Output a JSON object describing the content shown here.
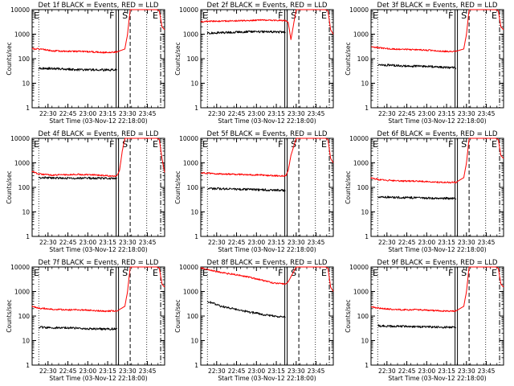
{
  "figure": {
    "xlabel": "Start Time (03-Nov-12 22:18:00)",
    "ylabel": "Counts/sec",
    "x_tick_labels": [
      "22:30",
      "22:45",
      "23:00",
      "23:15",
      "23:30",
      "23:45"
    ],
    "y_tick_labels": [
      "1",
      "10",
      "100",
      "1000",
      "10000"
    ],
    "x_ticks_min": [
      12,
      27,
      42,
      57,
      72,
      87
    ],
    "y_ticks": [
      1,
      10,
      100,
      1000,
      10000
    ],
    "xlim_min": [
      0,
      100
    ],
    "ylim": [
      1,
      10000
    ],
    "y_scale": "log",
    "colors": {
      "events": "#000000",
      "lld": "#ff0000",
      "frame": "#000000",
      "background": "#ffffff"
    },
    "markers": [
      {
        "label": "F",
        "x_min": 64.3,
        "style": "solid-double"
      },
      {
        "label": "S",
        "x_min": 74,
        "style": "dashed"
      },
      {
        "label": "E",
        "x_min": 97,
        "style": "dash-dot"
      },
      {
        "label": "E",
        "x_min": 3,
        "style": "none"
      }
    ],
    "dotted_lines_min": [
      5,
      86.5
    ]
  },
  "chart_data": [
    {
      "type": "line",
      "title": "Det 1f BLACK = Events, RED = LLD",
      "series": [
        {
          "name": "Events",
          "color": "#000000",
          "x_min": [
            5,
            15,
            25,
            35,
            45,
            55,
            64
          ],
          "y": [
            40,
            40,
            38,
            35,
            35,
            35,
            35
          ]
        },
        {
          "name": "LLD",
          "color": "#ff0000",
          "x_min": [
            0,
            5,
            15,
            25,
            35,
            45,
            55,
            64,
            70,
            72,
            74,
            75,
            90,
            94,
            96,
            98,
            100
          ],
          "y": [
            250,
            250,
            210,
            200,
            200,
            190,
            180,
            190,
            250,
            1000,
            10000,
            10000,
            10000,
            10000,
            9000,
            2000,
            1500
          ]
        }
      ]
    },
    {
      "type": "line",
      "title": "Det 2f BLACK = Events, RED = LLD",
      "series": [
        {
          "name": "Events",
          "color": "#000000",
          "x_min": [
            5,
            15,
            25,
            35,
            45,
            55,
            64
          ],
          "y": [
            1100,
            1150,
            1200,
            1250,
            1250,
            1250,
            1200
          ]
        },
        {
          "name": "LLD",
          "color": "#ff0000",
          "x_min": [
            0,
            5,
            15,
            25,
            35,
            45,
            55,
            64,
            66,
            68,
            72,
            75,
            80,
            90,
            94,
            96,
            98,
            100
          ],
          "y": [
            3200,
            3300,
            3400,
            3500,
            3600,
            3800,
            3700,
            3600,
            3000,
            600,
            10000,
            10000,
            10000,
            10000,
            10000,
            9000,
            1500,
            1000
          ]
        }
      ]
    },
    {
      "type": "line",
      "title": "Det 3f BLACK = Events, RED = LLD",
      "series": [
        {
          "name": "Events",
          "color": "#000000",
          "x_min": [
            5,
            15,
            25,
            35,
            45,
            55,
            64
          ],
          "y": [
            55,
            55,
            50,
            50,
            48,
            45,
            42
          ]
        },
        {
          "name": "LLD",
          "color": "#ff0000",
          "x_min": [
            0,
            5,
            15,
            25,
            35,
            45,
            55,
            64,
            70,
            72,
            74,
            75,
            90,
            94,
            96,
            98,
            100
          ],
          "y": [
            300,
            280,
            250,
            240,
            230,
            220,
            200,
            200,
            250,
            1000,
            10000,
            10000,
            10000,
            10000,
            9000,
            2000,
            1500
          ]
        }
      ]
    },
    {
      "type": "line",
      "title": "Det 4f BLACK = Events, RED = LLD",
      "series": [
        {
          "name": "Events",
          "color": "#000000",
          "x_min": [
            5,
            15,
            25,
            35,
            45,
            55,
            64
          ],
          "y": [
            250,
            240,
            240,
            235,
            235,
            235,
            230
          ]
        },
        {
          "name": "LLD",
          "color": "#ff0000",
          "x_min": [
            0,
            5,
            15,
            25,
            35,
            45,
            55,
            64,
            66,
            68,
            70,
            72,
            75,
            90,
            94,
            96,
            98,
            100
          ],
          "y": [
            450,
            350,
            320,
            330,
            340,
            330,
            300,
            290,
            500,
            3000,
            10000,
            10000,
            10000,
            10000,
            10000,
            9000,
            1500,
            400
          ]
        }
      ]
    },
    {
      "type": "line",
      "title": "Det 5f BLACK = Events, RED = LLD",
      "series": [
        {
          "name": "Events",
          "color": "#000000",
          "x_min": [
            5,
            15,
            25,
            35,
            45,
            55,
            64
          ],
          "y": [
            90,
            88,
            85,
            83,
            80,
            78,
            75
          ]
        },
        {
          "name": "LLD",
          "color": "#ff0000",
          "x_min": [
            0,
            5,
            15,
            25,
            35,
            45,
            55,
            64,
            66,
            68,
            72,
            75,
            80,
            90,
            94,
            96,
            98,
            100
          ],
          "y": [
            380,
            380,
            350,
            340,
            330,
            320,
            300,
            290,
            500,
            2000,
            10000,
            10000,
            10000,
            10000,
            10000,
            9000,
            1500,
            1000
          ]
        }
      ]
    },
    {
      "type": "line",
      "title": "Det 6f BLACK = Events, RED = LLD",
      "series": [
        {
          "name": "Events",
          "color": "#000000",
          "x_min": [
            5,
            15,
            25,
            35,
            45,
            55,
            64
          ],
          "y": [
            40,
            40,
            38,
            38,
            36,
            36,
            35
          ]
        },
        {
          "name": "LLD",
          "color": "#ff0000",
          "x_min": [
            0,
            5,
            15,
            25,
            35,
            45,
            55,
            64,
            70,
            72,
            74,
            75,
            90,
            94,
            96,
            98,
            100
          ],
          "y": [
            250,
            210,
            190,
            180,
            180,
            170,
            160,
            160,
            250,
            1000,
            10000,
            10000,
            10000,
            10000,
            9000,
            2000,
            1500
          ]
        }
      ]
    },
    {
      "type": "line",
      "title": "Det 7f BLACK = Events, RED = LLD",
      "series": [
        {
          "name": "Events",
          "color": "#000000",
          "x_min": [
            5,
            15,
            25,
            35,
            45,
            55,
            64
          ],
          "y": [
            35,
            33,
            33,
            32,
            30,
            30,
            30
          ]
        },
        {
          "name": "LLD",
          "color": "#ff0000",
          "x_min": [
            0,
            5,
            15,
            25,
            35,
            45,
            55,
            64,
            70,
            72,
            74,
            75,
            90,
            94,
            96,
            98,
            100
          ],
          "y": [
            250,
            210,
            190,
            180,
            180,
            170,
            160,
            160,
            250,
            1000,
            10000,
            10000,
            10000,
            10000,
            9000,
            2000,
            1500
          ]
        }
      ]
    },
    {
      "type": "line",
      "title": "Det 8f BLACK = Events, RED = LLD",
      "series": [
        {
          "name": "Events",
          "color": "#000000",
          "x_min": [
            5,
            15,
            25,
            35,
            45,
            55,
            64
          ],
          "y": [
            400,
            250,
            200,
            150,
            120,
            100,
            90
          ]
        },
        {
          "name": "LLD",
          "color": "#ff0000",
          "x_min": [
            0,
            5,
            15,
            25,
            35,
            45,
            55,
            64,
            66,
            68,
            72,
            75,
            80,
            90,
            94,
            96,
            98,
            100
          ],
          "y": [
            9000,
            8000,
            6000,
            5000,
            4000,
            3000,
            2200,
            2000,
            2500,
            4000,
            10000,
            10000,
            10000,
            10000,
            10000,
            9000,
            1500,
            1000
          ]
        }
      ]
    },
    {
      "type": "line",
      "title": "Det 9f BLACK = Events, RED = LLD",
      "series": [
        {
          "name": "Events",
          "color": "#000000",
          "x_min": [
            5,
            15,
            25,
            35,
            45,
            55,
            64
          ],
          "y": [
            40,
            38,
            38,
            37,
            36,
            35,
            35
          ]
        },
        {
          "name": "LLD",
          "color": "#ff0000",
          "x_min": [
            0,
            5,
            15,
            25,
            35,
            45,
            55,
            64,
            70,
            72,
            74,
            75,
            90,
            94,
            96,
            98,
            100
          ],
          "y": [
            250,
            210,
            190,
            180,
            180,
            170,
            160,
            160,
            250,
            1000,
            10000,
            10000,
            10000,
            10000,
            9000,
            2000,
            1500
          ]
        }
      ]
    }
  ]
}
